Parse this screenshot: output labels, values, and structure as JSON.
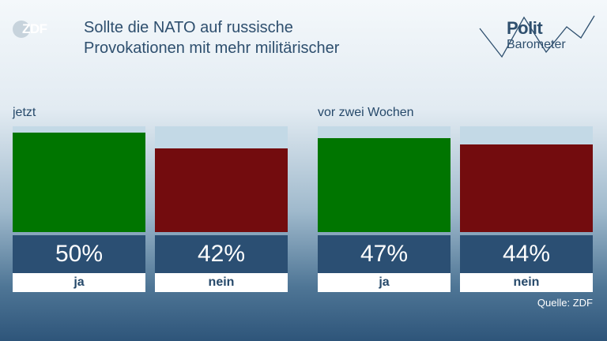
{
  "logo": {
    "text": "ZDF"
  },
  "header": {
    "title_line1": "Sollte die NATO auf russische",
    "title_line2": "Provokationen mit mehr militärischer"
  },
  "brand": {
    "line1": "Polit",
    "line2": "Barometer"
  },
  "source": "Quelle: ZDF",
  "colors": {
    "ja": "#007500",
    "nein": "#730c0e",
    "track": "#c3d9e6",
    "label_box": "#2b4f73"
  },
  "chart_data": [
    {
      "type": "bar",
      "title": "jetzt",
      "categories": [
        "ja",
        "nein"
      ],
      "values": [
        50,
        42
      ],
      "value_labels": [
        "50%",
        "42%"
      ],
      "ylim": [
        0,
        53
      ]
    },
    {
      "type": "bar",
      "title": "vor zwei Wochen",
      "categories": [
        "ja",
        "nein"
      ],
      "values": [
        47,
        44
      ],
      "value_labels": [
        "47%",
        "44%"
      ],
      "ylim": [
        0,
        53
      ]
    }
  ]
}
